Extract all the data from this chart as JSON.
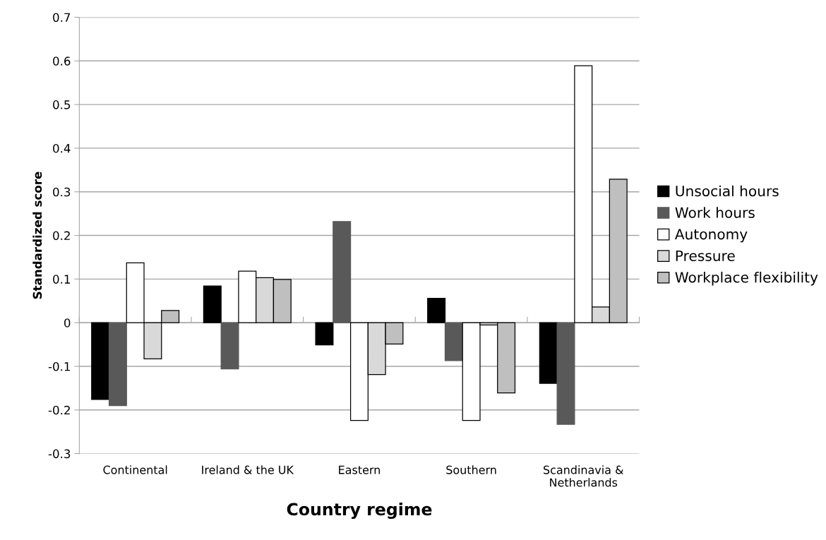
{
  "chart_data": {
    "type": "bar",
    "xlabel": "Country regime",
    "ylabel": "Standardized score",
    "categories": [
      "Continental",
      "Ireland & the UK",
      "Eastern",
      "Southern",
      "Scandinavia &\nNetherlands"
    ],
    "series": [
      {
        "name": "Unsocial hours",
        "color": "#000000",
        "values": [
          -0.176,
          0.084,
          -0.051,
          0.056,
          -0.139
        ]
      },
      {
        "name": "Work hours",
        "color": "#595959",
        "values": [
          -0.19,
          -0.106,
          0.232,
          -0.087,
          -0.233
        ]
      },
      {
        "name": "Autonomy",
        "color": "#ffffff",
        "values": [
          0.137,
          0.118,
          -0.224,
          -0.224,
          0.589
        ]
      },
      {
        "name": "Pressure",
        "color": "#d9d9d9",
        "values": [
          -0.083,
          0.103,
          -0.119,
          -0.005,
          0.036
        ]
      },
      {
        "name": "Workplace flexibility",
        "color": "#bfbfbf",
        "values": [
          0.028,
          0.099,
          -0.049,
          -0.161,
          0.329
        ]
      }
    ],
    "ylim": [
      -0.3,
      0.7
    ],
    "yticks": [
      -0.3,
      -0.2,
      -0.1,
      0,
      0.1,
      0.2,
      0.3,
      0.4,
      0.5,
      0.6,
      0.7
    ],
    "grid": "y",
    "legend": "right"
  }
}
